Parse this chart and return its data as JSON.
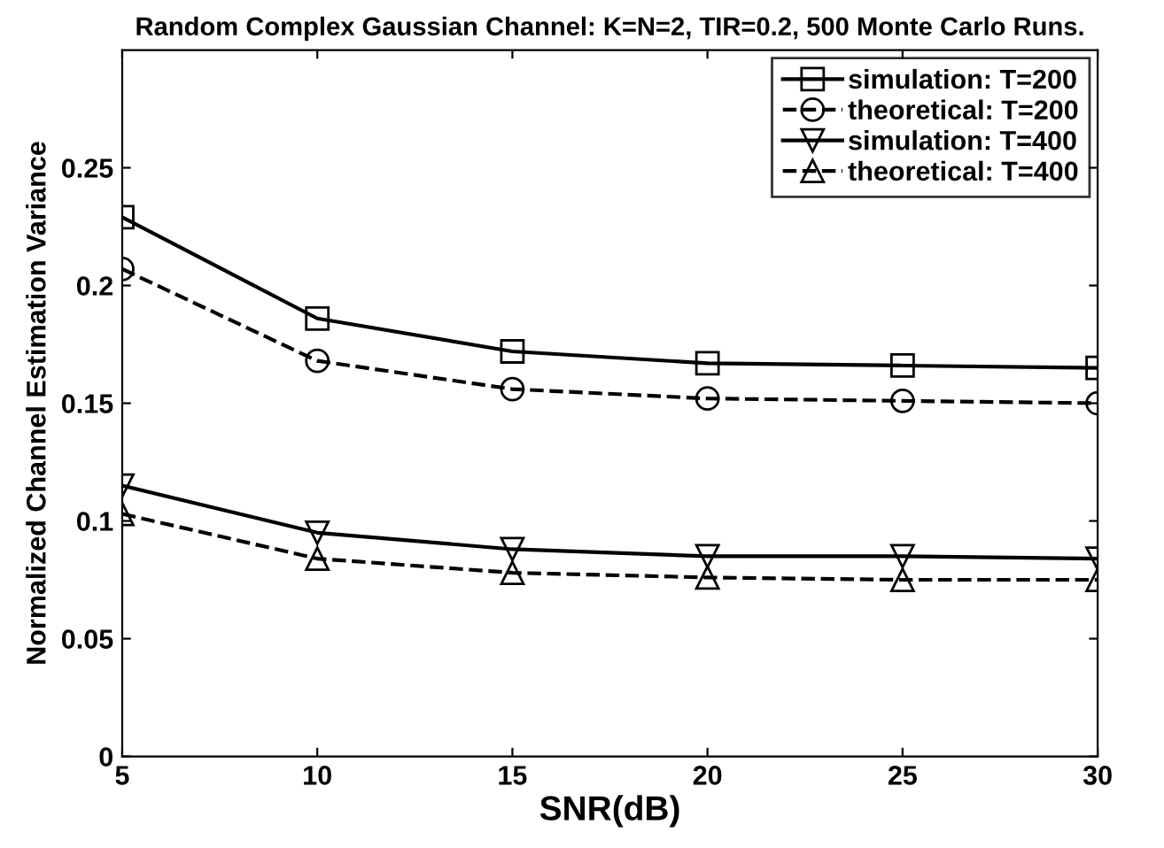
{
  "chart_data": {
    "type": "line",
    "title": "Random Complex Gaussian Channel: K=N=2, TIR=0.2, 500 Monte Carlo Runs.",
    "xlabel": "SNR(dB)",
    "ylabel": "Normalized Channel Estimation Variance",
    "x": [
      5,
      10,
      15,
      20,
      25,
      30
    ],
    "series": [
      {
        "name": "simulation: T=200",
        "color": "#000000",
        "marker": "square",
        "line_style": "solid",
        "values": [
          0.229,
          0.186,
          0.172,
          0.167,
          0.166,
          0.165
        ]
      },
      {
        "name": "theoretical: T=200",
        "color": "#000000",
        "marker": "circle",
        "line_style": "dashed",
        "values": [
          0.207,
          0.168,
          0.156,
          0.152,
          0.151,
          0.15
        ]
      },
      {
        "name": "simulation: T=400",
        "color": "#000000",
        "marker": "triangle_down",
        "line_style": "solid",
        "values": [
          0.115,
          0.095,
          0.088,
          0.085,
          0.085,
          0.084
        ]
      },
      {
        "name": "theoretical: T=400",
        "color": "#000000",
        "marker": "triangle",
        "line_style": "dashed",
        "values": [
          0.103,
          0.084,
          0.078,
          0.076,
          0.075,
          0.075
        ]
      }
    ],
    "xlim": [
      5,
      30
    ],
    "ylim": [
      0,
      0.3
    ],
    "xticks": [
      5,
      10,
      15,
      20,
      25,
      30
    ],
    "yticks": [
      0,
      0.05,
      0.1,
      0.15,
      0.2,
      0.25
    ],
    "grid": false,
    "legend": "top right"
  }
}
